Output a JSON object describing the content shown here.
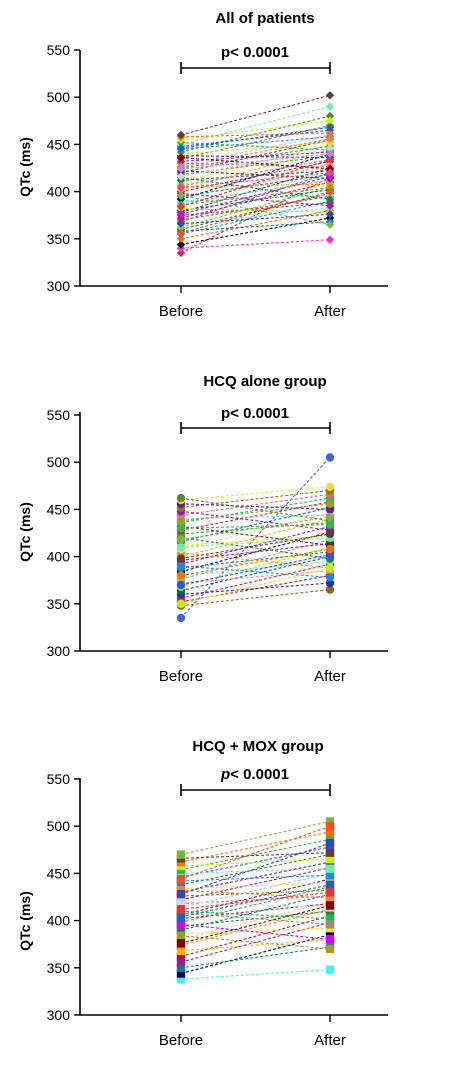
{
  "chart_data": [
    {
      "type": "line",
      "title": "All of patients",
      "ylabel": "QTc (ms)",
      "xlabel": "",
      "categories": [
        "Before",
        "After"
      ],
      "ylim": [
        300,
        550
      ],
      "yticks": [
        "300",
        "350",
        "400",
        "450",
        "500",
        "550"
      ],
      "marker": "diamond",
      "significance": {
        "label": "p< 0.0001",
        "italic": false
      },
      "series": [
        {
          "values": [
            335,
            415
          ]
        },
        {
          "values": [
            340,
            349
          ]
        },
        {
          "values": [
            344,
            372
          ]
        },
        {
          "values": [
            350,
            380
          ]
        },
        {
          "values": [
            355,
            390
          ]
        },
        {
          "values": [
            358,
            368
          ]
        },
        {
          "values": [
            360,
            398
          ]
        },
        {
          "values": [
            362,
            405
          ]
        },
        {
          "values": [
            365,
            383
          ]
        },
        {
          "values": [
            368,
            420
          ]
        },
        {
          "values": [
            370,
            395
          ]
        },
        {
          "values": [
            372,
            410
          ]
        },
        {
          "values": [
            375,
            388
          ]
        },
        {
          "values": [
            378,
            425
          ]
        },
        {
          "values": [
            380,
            402
          ]
        },
        {
          "values": [
            382,
            378
          ]
        },
        {
          "values": [
            385,
            430
          ]
        },
        {
          "values": [
            388,
            412
          ]
        },
        {
          "values": [
            390,
            396
          ]
        },
        {
          "values": [
            392,
            440
          ]
        },
        {
          "values": [
            395,
            418
          ]
        },
        {
          "values": [
            398,
            385
          ]
        },
        {
          "values": [
            400,
            432
          ]
        },
        {
          "values": [
            402,
            445
          ]
        },
        {
          "values": [
            405,
            408
          ]
        },
        {
          "values": [
            408,
            428
          ]
        },
        {
          "values": [
            410,
            450
          ]
        },
        {
          "values": [
            412,
            422
          ]
        },
        {
          "values": [
            415,
            392
          ]
        },
        {
          "values": [
            418,
            438
          ]
        },
        {
          "values": [
            420,
            455
          ]
        },
        {
          "values": [
            422,
            414
          ]
        },
        {
          "values": [
            425,
            448
          ]
        },
        {
          "values": [
            428,
            460
          ]
        },
        {
          "values": [
            430,
            426
          ]
        },
        {
          "values": [
            432,
            442
          ]
        },
        {
          "values": [
            435,
            470
          ]
        },
        {
          "values": [
            438,
            436
          ]
        },
        {
          "values": [
            440,
            452
          ]
        },
        {
          "values": [
            442,
            480
          ]
        },
        {
          "values": [
            445,
            458
          ]
        },
        {
          "values": [
            448,
            465
          ]
        },
        {
          "values": [
            450,
            490
          ]
        },
        {
          "values": [
            452,
            444
          ]
        },
        {
          "values": [
            455,
            475
          ]
        },
        {
          "values": [
            458,
            462
          ]
        },
        {
          "values": [
            460,
            502
          ]
        },
        {
          "values": [
            396,
            365
          ]
        },
        {
          "values": [
            386,
            404
          ]
        },
        {
          "values": [
            376,
            416
          ]
        },
        {
          "values": [
            406,
            434
          ]
        },
        {
          "values": [
            416,
            446
          ]
        },
        {
          "values": [
            426,
            456
          ]
        },
        {
          "values": [
            436,
            424
          ]
        },
        {
          "values": [
            446,
            468
          ]
        },
        {
          "values": [
            366,
            376
          ]
        },
        {
          "values": [
            356,
            400
          ]
        },
        {
          "values": [
            384,
            434
          ]
        },
        {
          "values": [
            404,
            420
          ]
        },
        {
          "values": [
            424,
            440
          ]
        }
      ]
    },
    {
      "type": "line",
      "title": "HCQ alone group",
      "ylabel": "QTc (ms)",
      "xlabel": "",
      "categories": [
        "Before",
        "After"
      ],
      "ylim": [
        300,
        550
      ],
      "yticks": [
        "300",
        "350",
        "400",
        "450",
        "500",
        "550"
      ],
      "marker": "circle",
      "significance": {
        "label": "p< 0.0001",
        "italic": false
      },
      "series": [
        {
          "values": [
            335,
            505
          ]
        },
        {
          "values": [
            348,
            365
          ]
        },
        {
          "values": [
            352,
            380
          ]
        },
        {
          "values": [
            356,
            392
          ]
        },
        {
          "values": [
            360,
            372
          ]
        },
        {
          "values": [
            364,
            400
          ]
        },
        {
          "values": [
            368,
            410
          ]
        },
        {
          "values": [
            372,
            385
          ]
        },
        {
          "values": [
            376,
            418
          ]
        },
        {
          "values": [
            380,
            395
          ]
        },
        {
          "values": [
            384,
            426
          ]
        },
        {
          "values": [
            388,
            405
          ]
        },
        {
          "values": [
            392,
            432
          ]
        },
        {
          "values": [
            396,
            414
          ]
        },
        {
          "values": [
            400,
            440
          ]
        },
        {
          "values": [
            404,
            388
          ]
        },
        {
          "values": [
            408,
            446
          ]
        },
        {
          "values": [
            412,
            422
          ]
        },
        {
          "values": [
            416,
            452
          ]
        },
        {
          "values": [
            420,
            398
          ]
        },
        {
          "values": [
            424,
            436
          ]
        },
        {
          "values": [
            428,
            458
          ]
        },
        {
          "values": [
            432,
            412
          ]
        },
        {
          "values": [
            436,
            462
          ]
        },
        {
          "values": [
            440,
            444
          ]
        },
        {
          "values": [
            444,
            466
          ]
        },
        {
          "values": [
            448,
            428
          ]
        },
        {
          "values": [
            452,
            470
          ]
        },
        {
          "values": [
            456,
            450
          ]
        },
        {
          "values": [
            460,
            474
          ]
        },
        {
          "values": [
            462,
            438
          ]
        },
        {
          "values": [
            390,
            378
          ]
        },
        {
          "values": [
            370,
            402
          ]
        },
        {
          "values": [
            410,
            420
          ]
        },
        {
          "values": [
            430,
            434
          ]
        },
        {
          "values": [
            350,
            388
          ]
        },
        {
          "values": [
            380,
            408
          ]
        },
        {
          "values": [
            398,
            424
          ]
        },
        {
          "values": [
            418,
            442
          ]
        },
        {
          "values": [
            438,
            456
          ]
        }
      ]
    },
    {
      "type": "line",
      "title": "HCQ + MOX group",
      "ylabel": "QTc (ms)",
      "xlabel": "",
      "categories": [
        "Before",
        "After"
      ],
      "ylim": [
        300,
        550
      ],
      "yticks": [
        "300",
        "350",
        "400",
        "450",
        "500",
        "550"
      ],
      "marker": "square",
      "significance": {
        "label": "p< 0.0001",
        "italic": true
      },
      "series": [
        {
          "values": [
            338,
            348
          ]
        },
        {
          "values": [
            344,
            385
          ]
        },
        {
          "values": [
            350,
            372
          ]
        },
        {
          "values": [
            356,
            398
          ]
        },
        {
          "values": [
            362,
            405
          ]
        },
        {
          "values": [
            368,
            380
          ]
        },
        {
          "values": [
            374,
            412
          ]
        },
        {
          "values": [
            380,
            420
          ]
        },
        {
          "values": [
            386,
            392
          ]
        },
        {
          "values": [
            390,
            428
          ]
        },
        {
          "values": [
            394,
            410
          ]
        },
        {
          "values": [
            398,
            436
          ]
        },
        {
          "values": [
            402,
            418
          ]
        },
        {
          "values": [
            406,
            444
          ]
        },
        {
          "values": [
            410,
            402
          ]
        },
        {
          "values": [
            414,
            450
          ]
        },
        {
          "values": [
            418,
            426
          ]
        },
        {
          "values": [
            422,
            456
          ]
        },
        {
          "values": [
            426,
            432
          ]
        },
        {
          "values": [
            430,
            462
          ]
        },
        {
          "values": [
            434,
            440
          ]
        },
        {
          "values": [
            438,
            470
          ]
        },
        {
          "values": [
            442,
            448
          ]
        },
        {
          "values": [
            446,
            478
          ]
        },
        {
          "values": [
            450,
            455
          ]
        },
        {
          "values": [
            454,
            486
          ]
        },
        {
          "values": [
            458,
            465
          ]
        },
        {
          "values": [
            462,
            494
          ]
        },
        {
          "values": [
            466,
            472
          ]
        },
        {
          "values": [
            470,
            505
          ]
        },
        {
          "values": [
            384,
            370
          ]
        },
        {
          "values": [
            396,
            380
          ]
        },
        {
          "values": [
            408,
            396
          ]
        },
        {
          "values": [
            420,
            414
          ]
        },
        {
          "values": [
            432,
            424
          ]
        },
        {
          "values": [
            376,
            416
          ]
        },
        {
          "values": [
            404,
            438
          ]
        },
        {
          "values": [
            428,
            482
          ]
        },
        {
          "values": [
            444,
            500
          ]
        },
        {
          "values": [
            412,
            430
          ]
        }
      ]
    }
  ]
}
